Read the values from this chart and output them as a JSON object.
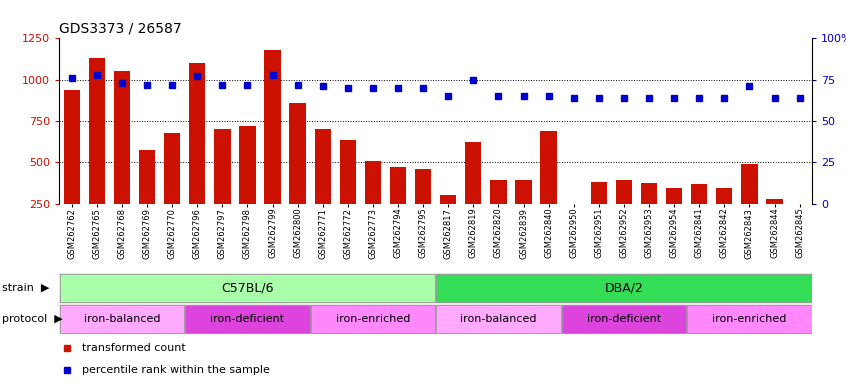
{
  "title": "GDS3373 / 26587",
  "samples": [
    "GSM262762",
    "GSM262765",
    "GSM262768",
    "GSM262769",
    "GSM262770",
    "GSM262796",
    "GSM262797",
    "GSM262798",
    "GSM262799",
    "GSM262800",
    "GSM262771",
    "GSM262772",
    "GSM262773",
    "GSM262794",
    "GSM262795",
    "GSM262817",
    "GSM262819",
    "GSM262820",
    "GSM262839",
    "GSM262840",
    "GSM262950",
    "GSM262951",
    "GSM262952",
    "GSM262953",
    "GSM262954",
    "GSM262841",
    "GSM262842",
    "GSM262843",
    "GSM262844",
    "GSM262845"
  ],
  "bar_values": [
    940,
    1130,
    1050,
    575,
    680,
    1100,
    700,
    720,
    1180,
    860,
    700,
    635,
    510,
    470,
    460,
    300,
    620,
    390,
    395,
    690,
    245,
    380,
    390,
    375,
    345,
    370,
    345,
    490,
    280,
    245
  ],
  "dot_values": [
    76,
    78,
    73,
    72,
    72,
    77,
    72,
    72,
    78,
    72,
    71,
    70,
    70,
    70,
    70,
    65,
    75,
    65,
    65,
    65,
    64,
    64,
    64,
    64,
    64,
    64,
    64,
    71,
    64,
    64
  ],
  "bar_color": "#cc1100",
  "dot_color": "#0000cc",
  "ylim_left": [
    250,
    1250
  ],
  "ylim_right": [
    0,
    100
  ],
  "yticks_left": [
    250,
    500,
    750,
    1000,
    1250
  ],
  "yticks_right": [
    0,
    25,
    50,
    75,
    100
  ],
  "ytick_labels_right": [
    "0",
    "25",
    "50",
    "75",
    "100%"
  ],
  "grid_lines": [
    500,
    750,
    1000
  ],
  "strain_groups": [
    {
      "label": "C57BL/6",
      "start": 0,
      "end": 15,
      "color": "#aaffaa"
    },
    {
      "label": "DBA/2",
      "start": 15,
      "end": 30,
      "color": "#33dd55"
    }
  ],
  "protocol_groups": [
    {
      "label": "iron-balanced",
      "start": 0,
      "end": 5,
      "color": "#ffaaff"
    },
    {
      "label": "iron-deficient",
      "start": 5,
      "end": 10,
      "color": "#dd44dd"
    },
    {
      "label": "iron-enriched",
      "start": 10,
      "end": 15,
      "color": "#ff88ff"
    },
    {
      "label": "iron-balanced",
      "start": 15,
      "end": 20,
      "color": "#ffaaff"
    },
    {
      "label": "iron-deficient",
      "start": 20,
      "end": 25,
      "color": "#dd44dd"
    },
    {
      "label": "iron-enriched",
      "start": 25,
      "end": 30,
      "color": "#ff88ff"
    }
  ],
  "legend_items": [
    {
      "label": "transformed count",
      "color": "#cc1100"
    },
    {
      "label": "percentile rank within the sample",
      "color": "#0000cc"
    }
  ],
  "bg_color": "#e8e8e8"
}
